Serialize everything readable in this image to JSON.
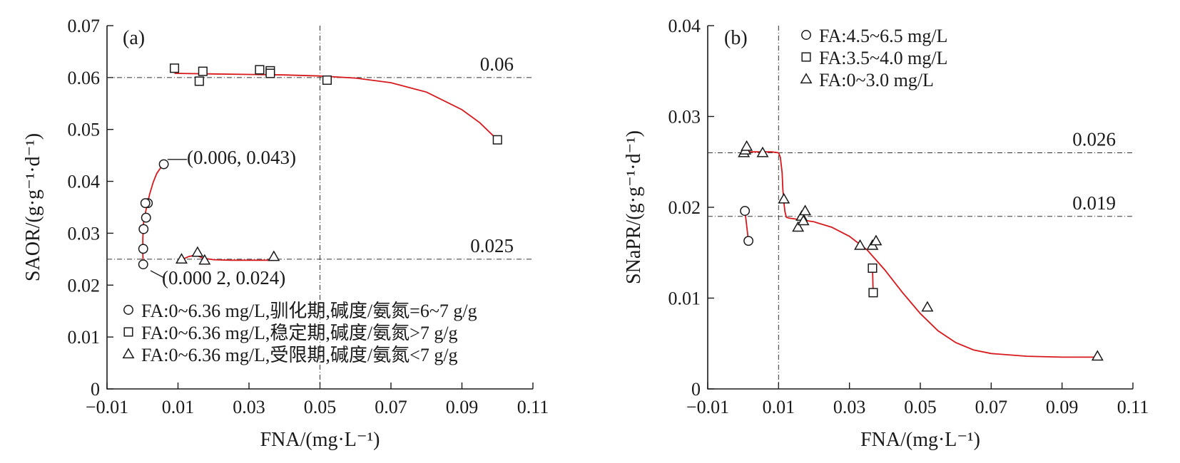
{
  "colors": {
    "fit": "#d7191c",
    "ink": "#1a1a1a"
  },
  "chart_data": [
    {
      "type": "scatter",
      "panel_label": "(a)",
      "xlabel": "FNA/(mg·L⁻¹)",
      "ylabel": "SAOR/(g·g⁻¹·d⁻¹)",
      "xlim": [
        -0.01,
        0.11
      ],
      "ylim": [
        0,
        0.07
      ],
      "xticks": [
        -0.01,
        0.01,
        0.03,
        0.05,
        0.07,
        0.09,
        0.11
      ],
      "xtick_labels": [
        "−0.01",
        "0.01",
        "0.03",
        "0.05",
        "0.07",
        "0.09",
        "0.11"
      ],
      "yticks": [
        0,
        0.01,
        0.02,
        0.03,
        0.04,
        0.05,
        0.06,
        0.07
      ],
      "ytick_labels": [
        "0",
        "0.01",
        "0.02",
        "0.03",
        "0.04",
        "0.05",
        "0.06",
        "0.07"
      ],
      "vlines": [
        0.05
      ],
      "hlines": [
        {
          "y": 0.06,
          "label": "0.06"
        },
        {
          "y": 0.025,
          "label": "0.025"
        }
      ],
      "annotations": [
        {
          "text": "—(0.006, 0.043)",
          "x": 0.006,
          "y": 0.043
        },
        {
          "text": "(0.000 2, 0.024)",
          "x": 0.0002,
          "y": 0.024
        }
      ],
      "legend_position": "lower-left",
      "series": [
        {
          "name": "FA:0~6.36 mg/L,驯化期,碱度/氨氮=6~7 g/g",
          "marker": "circle",
          "x": [
            0.0002,
            0.0002,
            0.0003,
            0.001,
            0.0015,
            0.0008,
            0.006
          ],
          "y": [
            0.024,
            0.027,
            0.0308,
            0.033,
            0.0358,
            0.0358,
            0.0433
          ],
          "fit_x": [
            0.0002,
            0.0001,
            0.0001,
            0.0003,
            0.001,
            0.002,
            0.003,
            0.004,
            0.005,
            0.006
          ],
          "fit_y": [
            0.024,
            0.026,
            0.029,
            0.032,
            0.0345,
            0.0375,
            0.0398,
            0.0415,
            0.0425,
            0.0433
          ]
        },
        {
          "name": "FA:0~6.36 mg/L,稳定期,碱度/氨氮>7 g/g",
          "marker": "square",
          "x": [
            0.009,
            0.016,
            0.017,
            0.033,
            0.036,
            0.036,
            0.052,
            0.1
          ],
          "y": [
            0.0618,
            0.0593,
            0.0612,
            0.0615,
            0.0613,
            0.0608,
            0.0595,
            0.048
          ],
          "fit_x": [
            0.009,
            0.02,
            0.03,
            0.04,
            0.05,
            0.06,
            0.07,
            0.08,
            0.09,
            0.095,
            0.1
          ],
          "fit_y": [
            0.0608,
            0.0607,
            0.0606,
            0.0605,
            0.0603,
            0.0599,
            0.059,
            0.0572,
            0.0538,
            0.0513,
            0.048
          ]
        },
        {
          "name": "FA:0~6.36 mg/L,受限期,碱度/氨氮<7 g/g",
          "marker": "triangle",
          "x": [
            0.011,
            0.0155,
            0.0175,
            0.037
          ],
          "y": [
            0.025,
            0.0263,
            0.0248,
            0.0255
          ],
          "fit_x": [
            0.011,
            0.013,
            0.015,
            0.017,
            0.02,
            0.025,
            0.03,
            0.037
          ],
          "fit_y": [
            0.0249,
            0.0255,
            0.0258,
            0.0252,
            0.0249,
            0.0248,
            0.0248,
            0.0248
          ]
        }
      ]
    },
    {
      "type": "scatter",
      "panel_label": "(b)",
      "xlabel": "FNA/(mg·L⁻¹)",
      "ylabel": "SNaPR/(g·g⁻¹·d⁻¹)",
      "xlim": [
        -0.01,
        0.11
      ],
      "ylim": [
        0,
        0.04
      ],
      "xticks": [
        -0.01,
        0.01,
        0.03,
        0.05,
        0.07,
        0.09,
        0.11
      ],
      "xtick_labels": [
        "−0.01",
        "0.01",
        "0.03",
        "0.05",
        "0.07",
        "0.09",
        "0.11"
      ],
      "yticks": [
        0,
        0.01,
        0.02,
        0.03,
        0.04
      ],
      "ytick_labels": [
        "0",
        "0.01",
        "0.02",
        "0.03",
        "0.04"
      ],
      "vlines": [
        0.01
      ],
      "hlines": [
        {
          "y": 0.026,
          "label": "0.026"
        },
        {
          "y": 0.019,
          "label": "0.019"
        }
      ],
      "annotations": [],
      "legend_position": "top",
      "series": [
        {
          "name": "FA:4.5~6.5 mg/L",
          "marker": "circle",
          "x": [
            0.0005,
            0.0015
          ],
          "y": [
            0.0196,
            0.0163
          ],
          "fit_x": [
            0.0005,
            0.0015
          ],
          "fit_y": [
            0.0196,
            0.0163
          ]
        },
        {
          "name": "FA:3.5~4.0 mg/L",
          "marker": "square",
          "x": [
            0.0365,
            0.0367
          ],
          "y": [
            0.0133,
            0.0106
          ],
          "fit_x": [
            0.0365,
            0.0367
          ],
          "fit_y": [
            0.0133,
            0.0106
          ]
        },
        {
          "name": "FA:0~3.0 mg/L",
          "marker": "triangle",
          "x": [
            0.0002,
            0.0006,
            0.001,
            0.0055,
            0.0115,
            0.0155,
            0.0165,
            0.017,
            0.0175,
            0.033,
            0.0365,
            0.0375,
            0.052,
            0.1
          ],
          "y": [
            0.026,
            0.0263,
            0.0267,
            0.026,
            0.0209,
            0.0178,
            0.019,
            0.0185,
            0.0196,
            0.0158,
            0.0158,
            0.0163,
            0.009,
            0.0036
          ],
          "fit_x": [
            0.0,
            0.005,
            0.008,
            0.01,
            0.0105,
            0.011,
            0.0112,
            0.0115,
            0.0118,
            0.0122,
            0.013,
            0.015,
            0.02,
            0.025,
            0.03,
            0.035,
            0.04,
            0.045,
            0.05,
            0.055,
            0.06,
            0.065,
            0.07,
            0.08,
            0.09,
            0.1
          ],
          "fit_y": [
            0.0261,
            0.0261,
            0.0261,
            0.026,
            0.0255,
            0.0238,
            0.022,
            0.0205,
            0.0195,
            0.0189,
            0.0188,
            0.0187,
            0.0184,
            0.0178,
            0.0168,
            0.0153,
            0.0131,
            0.0106,
            0.0083,
            0.0064,
            0.0051,
            0.0043,
            0.0039,
            0.0036,
            0.0035,
            0.0035
          ]
        }
      ]
    }
  ]
}
